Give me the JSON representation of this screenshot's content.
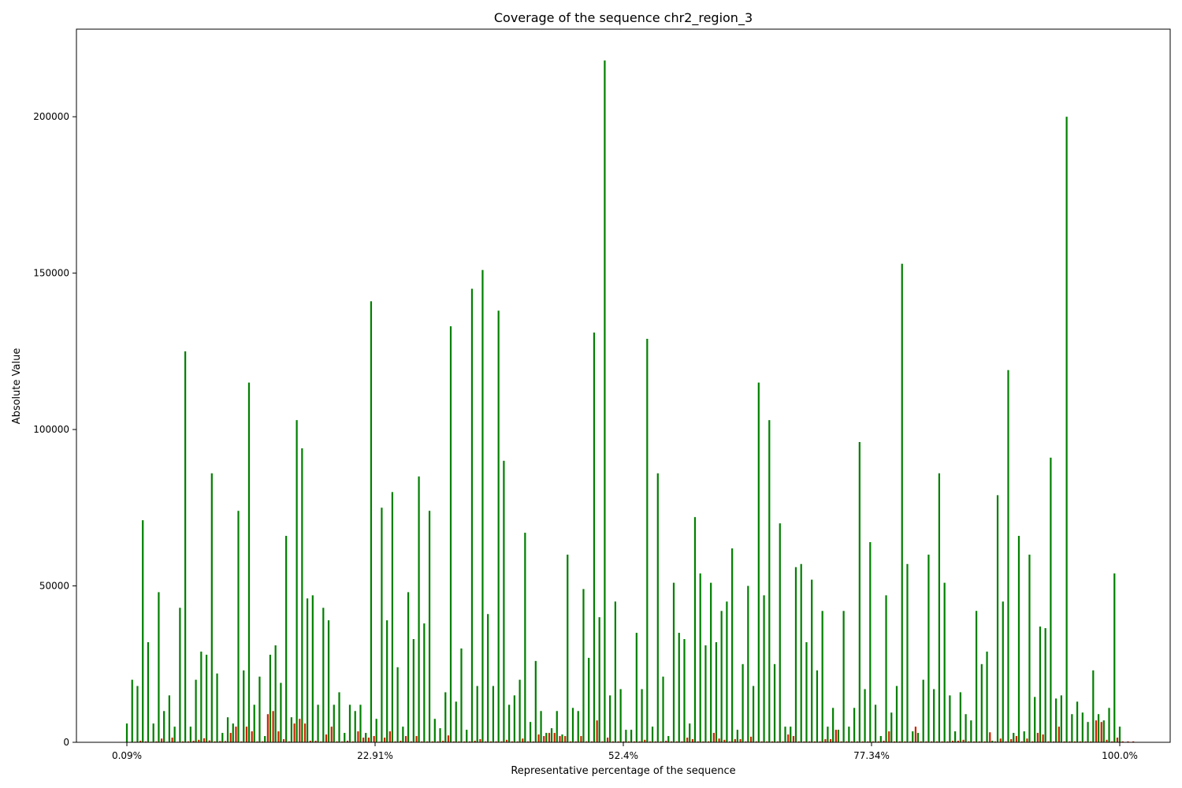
{
  "chart_data": {
    "type": "bar",
    "title": "Coverage of the sequence chr2_region_3",
    "xlabel": "Representative percentage of the sequence",
    "ylabel": "Absolute Value",
    "ylim": [
      0,
      228000
    ],
    "x_tick_labels": [
      "0.09%",
      "22.91%",
      "52.4%",
      "77.34%",
      "100.0%"
    ],
    "y_ticks": [
      0,
      50000,
      100000,
      150000,
      200000
    ],
    "grid": false,
    "colors": {
      "series_a": "#008000",
      "series_b": "#cc2200"
    },
    "series": [
      {
        "values": [
          6000,
          20000,
          18000,
          71000,
          32000,
          6000,
          48000,
          10000,
          15000,
          5000,
          43000,
          125000,
          5000,
          20000,
          29000,
          28000,
          86000,
          22000,
          3000,
          8000,
          6000,
          74000,
          23000,
          115000,
          12000,
          21000,
          2000,
          28000,
          31000,
          19000,
          66000,
          8000,
          103000,
          94000,
          46000,
          47000,
          12000,
          43000,
          39000,
          12000,
          16000,
          3000,
          12000,
          10000,
          12000,
          3000,
          141000,
          7500,
          75000,
          39000,
          80000,
          24000,
          5000,
          48000,
          33000,
          85000,
          38000,
          74000,
          7500,
          4500,
          16000,
          133000,
          13000,
          30000,
          4000,
          145000,
          18000,
          151000,
          41000,
          18000,
          138000,
          90000,
          12000,
          15000,
          20000,
          67000,
          6500,
          26000,
          10000,
          3000,
          4500,
          10000,
          2500,
          60000,
          11000,
          10000,
          49000,
          27000,
          131000,
          40000,
          218000,
          15000,
          45000,
          17000,
          4000,
          4000,
          35000,
          17000,
          129000,
          5000,
          86000,
          21000,
          2000,
          51000,
          35000,
          33000,
          6000,
          72000,
          54000,
          31000,
          51000,
          32000,
          42000,
          45000,
          62000,
          4000,
          25000,
          50000,
          18000,
          115000,
          47000,
          103000,
          25000,
          70000,
          5000,
          5000,
          56000,
          57000,
          32000,
          52000,
          23000,
          42000,
          5000,
          11000,
          4000,
          42000,
          5000,
          11000,
          96000,
          17000,
          64000,
          12000,
          2000,
          47000,
          9500,
          18000,
          153000,
          57000,
          3500,
          3000,
          20000,
          60000,
          17000,
          86000,
          51000,
          15000,
          3500,
          16000,
          9000,
          7000,
          42000,
          25000,
          29000,
          500,
          79000,
          45000,
          119000,
          3000,
          66000,
          3500,
          60000,
          14500,
          37000,
          36500,
          91000,
          14000,
          15000,
          200000,
          9000,
          13000,
          9500,
          6500,
          23000,
          9000,
          7000,
          11000,
          54000,
          5000
        ],
        "color_key": "series_a"
      },
      {
        "values": [
          0,
          200,
          500,
          300,
          200,
          300,
          1200,
          200,
          1500,
          200,
          300,
          300,
          500,
          800,
          1300,
          600,
          300,
          400,
          400,
          3000,
          5000,
          300,
          5000,
          3500,
          300,
          300,
          9000,
          10000,
          3500,
          1000,
          300,
          6000,
          7500,
          6000,
          500,
          500,
          300,
          2500,
          5000,
          300,
          300,
          500,
          300,
          3500,
          1500,
          1500,
          2000,
          200,
          1500,
          3500,
          300,
          500,
          2000,
          300,
          2000,
          300,
          300,
          300,
          300,
          500,
          2200,
          300,
          300,
          300,
          300,
          500,
          1000,
          300,
          300,
          300,
          300,
          800,
          300,
          300,
          1200,
          300,
          300,
          2500,
          2000,
          3000,
          3000,
          2000,
          2000,
          300,
          300,
          2000,
          300,
          300,
          7000,
          300,
          1500,
          300,
          300,
          300,
          300,
          300,
          300,
          800,
          300,
          300,
          300,
          500,
          300,
          300,
          300,
          1500,
          1000,
          300,
          300,
          300,
          3000,
          1200,
          800,
          300,
          1000,
          1000,
          300,
          1800,
          300,
          300,
          300,
          300,
          300,
          300,
          2500,
          2000,
          300,
          300,
          300,
          300,
          300,
          1000,
          1000,
          4000,
          300,
          300,
          300,
          300,
          300,
          300,
          300,
          300,
          500,
          3500,
          300,
          300,
          300,
          300,
          5000,
          300,
          300,
          300,
          300,
          300,
          300,
          500,
          500,
          800,
          300,
          300,
          300,
          300,
          3200,
          300,
          1200,
          300,
          1000,
          2000,
          300,
          1200,
          300,
          3000,
          2500,
          300,
          300,
          5000,
          300,
          300,
          300,
          300,
          300,
          300,
          7000,
          6500,
          800,
          300,
          1500,
          300,
          300,
          300
        ],
        "color_key": "series_b"
      }
    ]
  }
}
